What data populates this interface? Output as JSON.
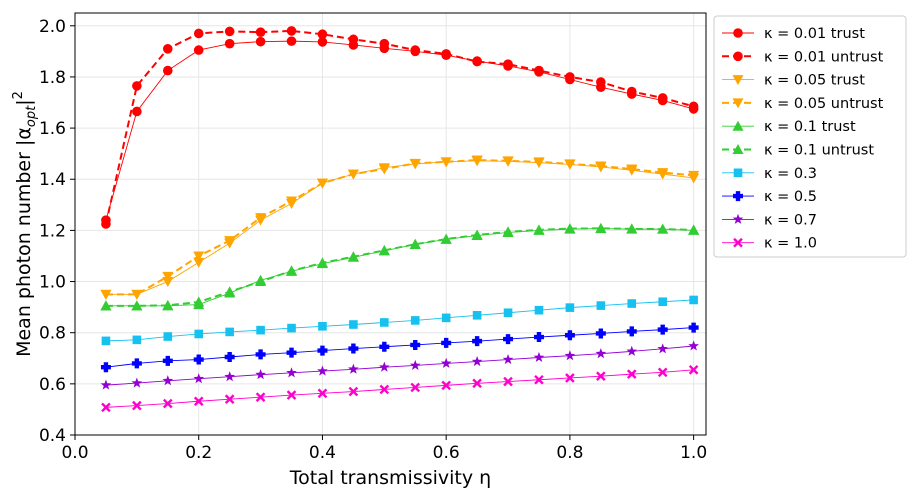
{
  "chart_data": {
    "type": "line",
    "xlabel": "Total transmissivity η",
    "ylabel": "Mean photon number |α_opt|²",
    "xlim": [
      0.0,
      1.02
    ],
    "ylim": [
      0.4,
      2.05
    ],
    "xticks": [
      0.0,
      0.2,
      0.4,
      0.6,
      0.8,
      1.0
    ],
    "yticks": [
      0.4,
      0.6,
      0.8,
      1.0,
      1.2,
      1.4,
      1.6,
      1.8,
      2.0
    ],
    "xtick_labels": [
      "0.0",
      "0.2",
      "0.4",
      "0.6",
      "0.8",
      "1.0"
    ],
    "ytick_labels": [
      "0.4",
      "0.6",
      "0.8",
      "1.0",
      "1.2",
      "1.4",
      "1.6",
      "1.8",
      "2.0"
    ],
    "grid": true,
    "legend_position": "outside-right",
    "x": [
      0.05,
      0.1,
      0.15,
      0.2,
      0.25,
      0.3,
      0.35,
      0.4,
      0.45,
      0.5,
      0.55,
      0.6,
      0.65,
      0.7,
      0.75,
      0.8,
      0.85,
      0.9,
      0.95,
      1.0
    ],
    "series": [
      {
        "name": "κ = 0.01 trust",
        "color": "#ff0000",
        "marker": "circle",
        "dashed": false,
        "values": [
          1.24,
          1.665,
          1.825,
          1.905,
          1.93,
          1.938,
          1.94,
          1.937,
          1.925,
          1.912,
          1.9,
          1.885,
          1.862,
          1.843,
          1.82,
          1.79,
          1.76,
          1.733,
          1.708,
          1.675
        ]
      },
      {
        "name": "κ = 0.01 untrust",
        "color": "#ff0000",
        "marker": "circle",
        "dashed": true,
        "values": [
          1.225,
          1.765,
          1.91,
          1.97,
          1.978,
          1.975,
          1.98,
          1.967,
          1.947,
          1.93,
          1.905,
          1.89,
          1.86,
          1.85,
          1.825,
          1.8,
          1.78,
          1.743,
          1.718,
          1.685
        ]
      },
      {
        "name": "κ = 0.05 trust",
        "color": "#ffa500",
        "marker": "triangle-down",
        "dashed": false,
        "values": [
          0.95,
          0.95,
          1.0,
          1.075,
          1.15,
          1.24,
          1.305,
          1.385,
          1.42,
          1.445,
          1.46,
          1.468,
          1.472,
          1.47,
          1.465,
          1.458,
          1.448,
          1.435,
          1.42,
          1.405
        ]
      },
      {
        "name": "κ = 0.05 untrust",
        "color": "#ffa500",
        "marker": "triangle-down",
        "dashed": true,
        "values": [
          0.95,
          0.95,
          1.02,
          1.1,
          1.16,
          1.25,
          1.315,
          1.385,
          1.42,
          1.44,
          1.462,
          1.468,
          1.475,
          1.472,
          1.468,
          1.46,
          1.452,
          1.44,
          1.426,
          1.415
        ]
      },
      {
        "name": "κ = 0.1 trust",
        "color": "#32cd32",
        "marker": "triangle-up",
        "dashed": false,
        "values": [
          0.905,
          0.905,
          0.905,
          0.91,
          0.955,
          1.005,
          1.04,
          1.07,
          1.095,
          1.12,
          1.145,
          1.165,
          1.18,
          1.192,
          1.2,
          1.205,
          1.207,
          1.205,
          1.205,
          1.2
        ]
      },
      {
        "name": "κ = 0.1 untrust",
        "color": "#32cd32",
        "marker": "triangle-up",
        "dashed": true,
        "values": [
          0.905,
          0.905,
          0.907,
          0.92,
          0.96,
          1.0,
          1.042,
          1.073,
          1.097,
          1.122,
          1.146,
          1.166,
          1.182,
          1.194,
          1.202,
          1.207,
          1.208,
          1.206,
          1.205,
          1.202
        ]
      },
      {
        "name": "κ = 0.3",
        "color": "#16c1f0",
        "marker": "square",
        "dashed": false,
        "values": [
          0.768,
          0.772,
          0.785,
          0.795,
          0.803,
          0.81,
          0.818,
          0.825,
          0.832,
          0.84,
          0.848,
          0.858,
          0.868,
          0.878,
          0.888,
          0.898,
          0.906,
          0.914,
          0.921,
          0.928
        ]
      },
      {
        "name": "κ = 0.5",
        "color": "#0000ff",
        "marker": "plus",
        "dashed": false,
        "values": [
          0.665,
          0.68,
          0.69,
          0.695,
          0.705,
          0.715,
          0.722,
          0.73,
          0.738,
          0.745,
          0.752,
          0.76,
          0.767,
          0.775,
          0.783,
          0.79,
          0.797,
          0.805,
          0.812,
          0.82
        ]
      },
      {
        "name": "κ = 0.7",
        "color": "#9400d3",
        "marker": "star",
        "dashed": false,
        "values": [
          0.595,
          0.603,
          0.612,
          0.62,
          0.628,
          0.636,
          0.643,
          0.65,
          0.657,
          0.665,
          0.672,
          0.68,
          0.687,
          0.695,
          0.703,
          0.71,
          0.718,
          0.727,
          0.737,
          0.748
        ]
      },
      {
        "name": "κ = 1.0",
        "color": "#ff00cc",
        "marker": "x-filled",
        "dashed": false,
        "values": [
          0.508,
          0.515,
          0.523,
          0.532,
          0.54,
          0.548,
          0.556,
          0.563,
          0.57,
          0.578,
          0.586,
          0.594,
          0.602,
          0.609,
          0.616,
          0.623,
          0.63,
          0.638,
          0.645,
          0.655
        ]
      }
    ]
  }
}
